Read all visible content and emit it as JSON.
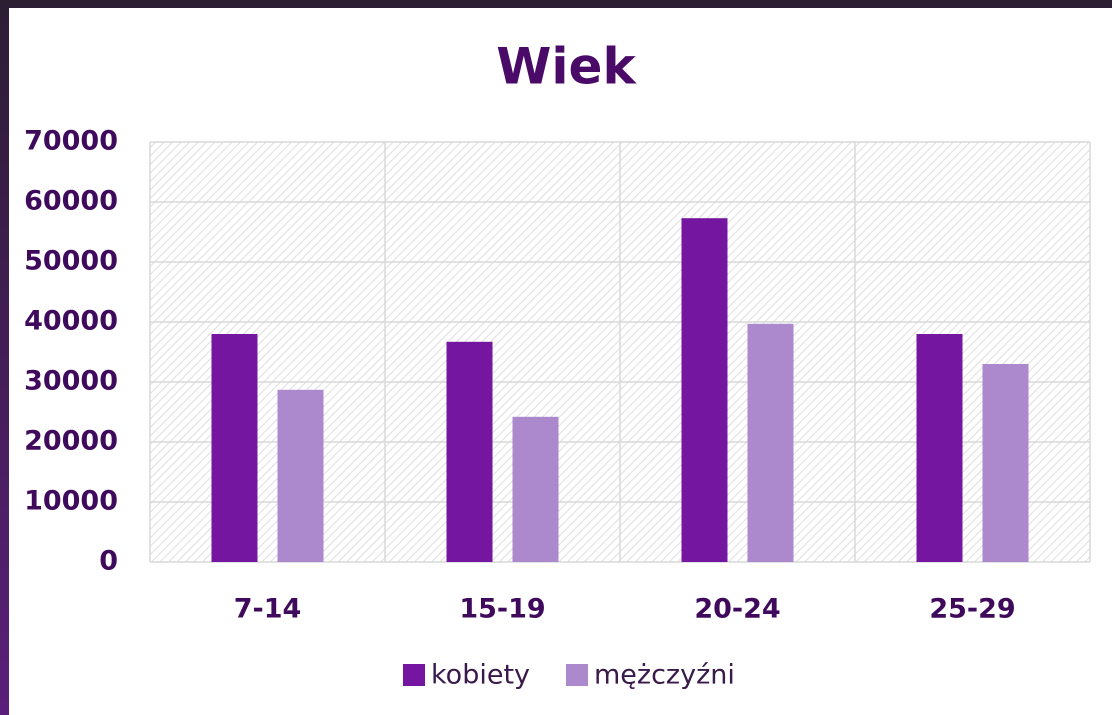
{
  "chart_data": {
    "type": "bar",
    "title": "Wiek",
    "categories": [
      "7-14",
      "15-19",
      "20-24",
      "25-29"
    ],
    "series": [
      {
        "name": "kobiety",
        "color": "#7516a0",
        "values": [
          38000,
          36700,
          57300,
          38000
        ]
      },
      {
        "name": "mężczyźni",
        "color": "#ac88cc",
        "values": [
          28700,
          24200,
          39700,
          33000
        ]
      }
    ],
    "ylim": [
      0,
      70000
    ],
    "yticks": [
      0,
      10000,
      20000,
      30000,
      40000,
      50000,
      60000,
      70000
    ],
    "grid": true,
    "legend": "bottom"
  }
}
